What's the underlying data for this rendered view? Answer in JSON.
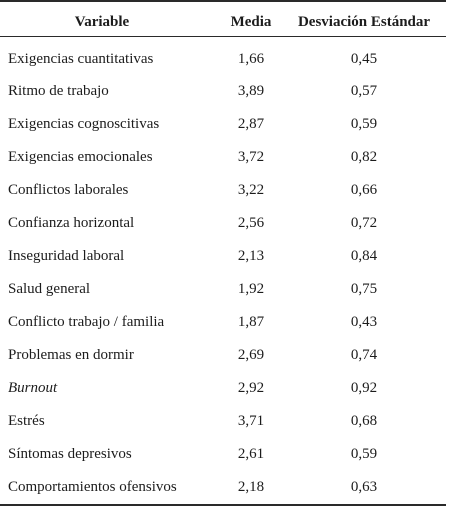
{
  "table": {
    "headers": {
      "variable": "Variable",
      "mean": "Media",
      "sd": "Desviación Estándar"
    },
    "rows": [
      {
        "variable": "Exigencias cuantitativas",
        "mean": "1,66",
        "sd": "0,45"
      },
      {
        "variable": "Ritmo de trabajo",
        "mean": "3,89",
        "sd": "0,57"
      },
      {
        "variable": "Exigencias cognoscitivas",
        "mean": "2,87",
        "sd": "0,59"
      },
      {
        "variable": "Exigencias emocionales",
        "mean": "3,72",
        "sd": "0,82"
      },
      {
        "variable": "Conflictos laborales",
        "mean": "3,22",
        "sd": "0,66"
      },
      {
        "variable": "Confianza horizontal",
        "mean": "2,56",
        "sd": "0,72"
      },
      {
        "variable": "Inseguridad laboral",
        "mean": "2,13",
        "sd": "0,84"
      },
      {
        "variable": "Salud general",
        "mean": "1,92",
        "sd": "0,75"
      },
      {
        "variable": "Conflicto trabajo / familia",
        "mean": "1,87",
        "sd": "0,43"
      },
      {
        "variable": "Problemas en dormir",
        "mean": "2,69",
        "sd": "0,74"
      },
      {
        "variable": "Burnout",
        "mean": "2,92",
        "sd": "0,92",
        "italic": true
      },
      {
        "variable": "Estrés",
        "mean": "3,71",
        "sd": "0,68"
      },
      {
        "variable": "Síntomas depresivos",
        "mean": "2,61",
        "sd": "0,59"
      },
      {
        "variable": "Comportamientos ofensivos",
        "mean": "2,18",
        "sd": "0,63"
      }
    ]
  }
}
